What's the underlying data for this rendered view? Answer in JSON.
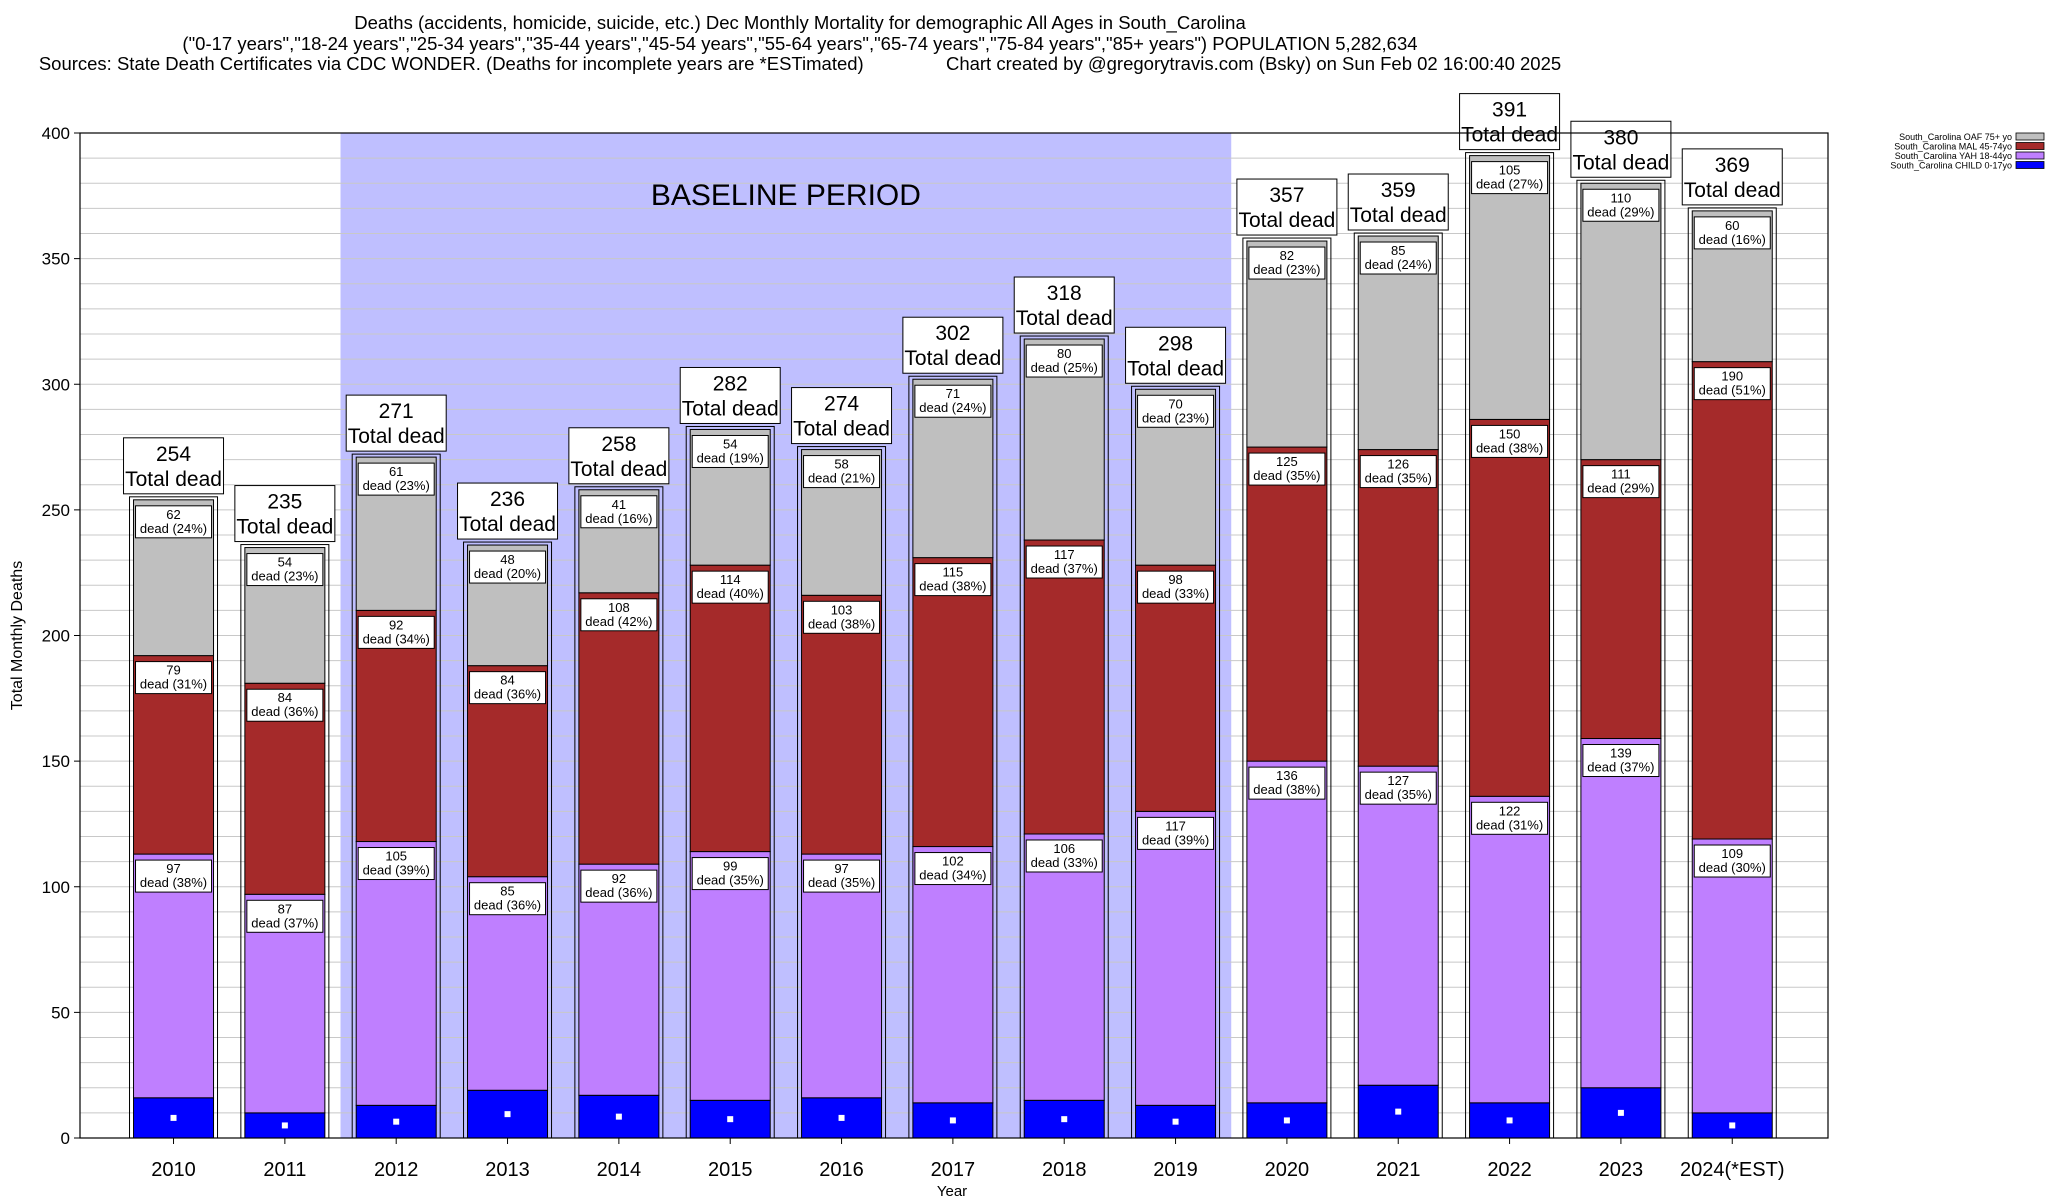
{
  "header": {
    "title_line1": "Deaths (accidents, homicide, suicide, etc.) Dec Monthly Mortality for demographic All Ages in South_Carolina",
    "title_line2": "(\"0-17 years\",\"18-24 years\",\"25-34 years\",\"35-44 years\",\"45-54 years\",\"55-64 years\",\"65-74 years\",\"75-84 years\",\"85+ years\") POPULATION 5,282,634",
    "title_line3": "Sources: State Death Certificates via CDC WONDER. (Deaths for incomplete years are *ESTimated)                Chart created by @gregorytravis.com (Bsky) on Sun Feb 02 16:00:40 2025"
  },
  "colors": {
    "child": "#0000ff",
    "yah": "#bf7fff",
    "mal": "#a52a2a",
    "oaf": "#bfbfbf",
    "baseline": "#bfbfff"
  },
  "chart_data": {
    "type": "bar",
    "stacked": true,
    "ylabel": "Total Monthly Deaths",
    "xlabel": "Year",
    "ylim": [
      0,
      400
    ],
    "yticks": [
      0,
      50,
      100,
      150,
      200,
      250,
      300,
      350,
      400
    ],
    "categories": [
      "2010",
      "2011",
      "2012",
      "2013",
      "2014",
      "2015",
      "2016",
      "2017",
      "2018",
      "2019",
      "2020",
      "2021",
      "2022",
      "2023",
      "2024(*EST)"
    ],
    "baseline_label": "BASELINE PERIOD",
    "baseline_range": [
      "2012",
      "2019"
    ],
    "total_suffix": "Total dead",
    "dead_word": "dead",
    "legend_position": "top-right",
    "series": [
      {
        "name": "South_Carolina CHILD 0-17yo",
        "key": "child",
        "values": [
          16,
          10,
          13,
          19,
          17,
          15,
          16,
          14,
          15,
          13,
          14,
          21,
          14,
          20,
          10
        ]
      },
      {
        "name": "South_Carolina YAH 18-44yo",
        "key": "yah",
        "values": [
          97,
          87,
          105,
          85,
          92,
          99,
          97,
          102,
          106,
          117,
          136,
          127,
          122,
          139,
          109
        ],
        "pct": [
          "38%",
          "37%",
          "39%",
          "36%",
          "36%",
          "35%",
          "35%",
          "34%",
          "33%",
          "39%",
          "38%",
          "35%",
          "31%",
          "37%",
          "30%"
        ]
      },
      {
        "name": "South_Carolina MAL 45-74yo",
        "key": "mal",
        "values": [
          79,
          84,
          92,
          84,
          108,
          114,
          103,
          115,
          117,
          98,
          125,
          126,
          150,
          111,
          190
        ],
        "pct": [
          "31%",
          "36%",
          "34%",
          "36%",
          "42%",
          "40%",
          "38%",
          "38%",
          "37%",
          "33%",
          "35%",
          "35%",
          "38%",
          "29%",
          "51%"
        ]
      },
      {
        "name": "South_Carolina OAF 75+ yo",
        "key": "oaf",
        "values": [
          62,
          54,
          61,
          48,
          41,
          54,
          58,
          71,
          80,
          70,
          82,
          85,
          105,
          110,
          60
        ],
        "pct": [
          "24%",
          "23%",
          "23%",
          "20%",
          "16%",
          "19%",
          "21%",
          "24%",
          "25%",
          "23%",
          "23%",
          "24%",
          "27%",
          "29%",
          "16%"
        ]
      }
    ],
    "totals": [
      254,
      235,
      271,
      236,
      258,
      282,
      274,
      302,
      318,
      298,
      357,
      359,
      391,
      380,
      369
    ]
  }
}
